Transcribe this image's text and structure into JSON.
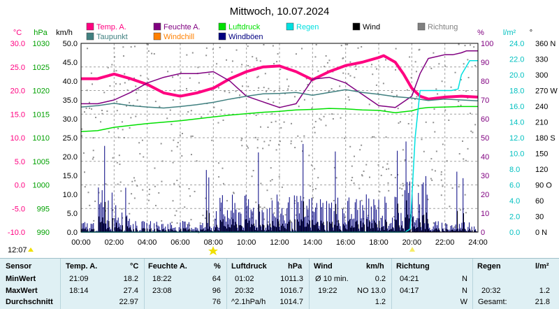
{
  "chart_data": {
    "type": "line",
    "title": "Mittwoch, 10.07.2024",
    "x_ticks": [
      "00:00",
      "02:00",
      "04:00",
      "06:00",
      "08:00",
      "10:00",
      "12:00",
      "14:00",
      "16:00",
      "18:00",
      "20:00",
      "22:00",
      "24:00"
    ],
    "left_axes": [
      {
        "name": "temp",
        "unit": "°C",
        "color": "#ff0080",
        "ticks": [
          "30.0",
          "25.0",
          "20.0",
          "15.0",
          "10.0",
          "5.0",
          "0.0",
          "-5.0",
          "-10.0"
        ]
      },
      {
        "name": "pressure",
        "unit": "hPa",
        "color": "#00a000",
        "ticks": [
          "1030",
          "1025",
          "1020",
          "1015",
          "1010",
          "1005",
          "1000",
          "995",
          "990"
        ]
      },
      {
        "name": "wind",
        "unit": "km/h",
        "color": "#000000",
        "ticks": [
          "50.0",
          "45.0",
          "40.0",
          "35.0",
          "30.0",
          "25.0",
          "20.0",
          "15.0",
          "10.0",
          "5.0",
          "0.0"
        ]
      }
    ],
    "right_axes": [
      {
        "name": "humidity",
        "unit": "%",
        "color": "#800080",
        "ticks": [
          "100",
          "90",
          "80",
          "70",
          "60",
          "50",
          "40",
          "30",
          "20",
          "10",
          "0"
        ]
      },
      {
        "name": "rain",
        "unit": "l/m²",
        "color": "#00c0c0",
        "ticks": [
          "24.0",
          "22.0",
          "20.0",
          "18.0",
          "16.0",
          "14.0",
          "12.0",
          "10.0",
          "8.0",
          "6.0",
          "4.0",
          "2.0",
          "0.0"
        ]
      },
      {
        "name": "direction",
        "unit": "°",
        "color": "#000000",
        "ticks": [
          "360 N",
          "330",
          "300",
          "270 W",
          "240",
          "210",
          "180 S",
          "150",
          "120",
          "90 O",
          "60",
          "30",
          "0 N"
        ]
      }
    ],
    "legend": [
      {
        "label": "Temp. A.",
        "color": "#ff0080"
      },
      {
        "label": "Feuchte A.",
        "color": "#800080"
      },
      {
        "label": "Luftdruck",
        "color": "#00e000"
      },
      {
        "label": "Regen",
        "color": "#00e0e0"
      },
      {
        "label": "Wind",
        "color": "#000000"
      },
      {
        "label": "Richtung",
        "color": "#808080"
      },
      {
        "label": "Taupunkt",
        "color": "#408080"
      },
      {
        "label": "Windchill",
        "color": "#ff8000"
      },
      {
        "label": "Windböen",
        "color": "#000080"
      }
    ],
    "series": [
      {
        "name": "Temp. A.",
        "axis": "temp",
        "x": [
          0,
          1,
          2,
          3,
          4,
          5,
          6,
          7,
          8,
          9,
          10,
          11,
          12,
          13,
          14,
          15,
          16,
          17,
          18,
          18.3,
          19,
          19.5,
          20,
          20.5,
          21,
          22,
          23,
          24
        ],
        "y": [
          22.5,
          22.5,
          23.5,
          22.5,
          21.3,
          19.5,
          18.8,
          19.5,
          20.5,
          22.5,
          24.0,
          25.0,
          25.2,
          24.0,
          22.3,
          24.0,
          25.3,
          26.0,
          27.0,
          27.4,
          26.0,
          23.5,
          20.5,
          18.8,
          18.2,
          18.6,
          18.8,
          18.6
        ]
      },
      {
        "name": "Feuchte A.",
        "axis": "humidity",
        "x": [
          0,
          1,
          2,
          3,
          4,
          5,
          6,
          7,
          8,
          9,
          10,
          11,
          12,
          13,
          14,
          15,
          16,
          17,
          18,
          19,
          20,
          20.5,
          21,
          22,
          22.5,
          23,
          23.3,
          24
        ],
        "y": [
          68,
          68,
          70,
          74,
          79,
          82,
          84,
          84,
          85,
          80,
          72,
          69,
          66,
          68,
          81,
          82,
          79,
          73,
          67,
          66,
          72,
          84,
          92,
          94,
          94,
          95,
          96,
          96
        ]
      },
      {
        "name": "Taupunkt",
        "axis": "temp",
        "x": [
          0,
          1,
          2,
          3,
          4,
          5,
          6,
          7,
          8,
          9,
          10,
          11,
          12,
          13,
          14,
          15,
          16,
          17,
          18,
          19,
          20,
          21,
          22,
          23,
          24
        ],
        "y": [
          16.5,
          16.8,
          17.3,
          16.8,
          16.5,
          16.3,
          16.6,
          17.0,
          17.5,
          18.2,
          18.8,
          19.3,
          19.4,
          19.6,
          19.0,
          19.6,
          20.2,
          19.6,
          19.2,
          18.7,
          18.4,
          17.9,
          18.2,
          18.0,
          17.8
        ]
      },
      {
        "name": "Luftdruck",
        "axis": "pressure",
        "x": [
          0,
          1,
          2,
          3,
          4,
          5,
          6,
          7,
          8,
          9,
          10,
          11,
          12,
          13,
          14,
          15,
          16,
          17,
          18,
          19,
          20,
          20.5,
          21,
          22,
          23,
          24
        ],
        "y": [
          1011.3,
          1011.5,
          1012.2,
          1012.6,
          1013.0,
          1013.3,
          1013.6,
          1014.0,
          1014.4,
          1014.8,
          1015.1,
          1015.4,
          1015.6,
          1015.9,
          1016.0,
          1016.2,
          1016.1,
          1015.9,
          1015.8,
          1015.3,
          1015.7,
          1016.2,
          1016.4,
          1016.5,
          1016.6,
          1016.6
        ]
      },
      {
        "name": "Regen",
        "axis": "rain",
        "x": [
          0,
          19.6,
          19.9,
          20.2,
          20.5,
          21.5,
          22.0,
          22.4,
          22.8,
          23.0,
          23.5,
          24
        ],
        "y": [
          0,
          0,
          0.4,
          12.0,
          18.0,
          18.0,
          18.0,
          18.0,
          18.2,
          20.0,
          21.8,
          21.8
        ]
      }
    ],
    "clock_markers": [
      "12:07"
    ]
  },
  "colors": {
    "background": "#ffffff",
    "grid": "#a0a0a0",
    "stats_bg": "#dff0f4",
    "temp": "#ff0080",
    "humidity": "#800080",
    "pressure": "#00e000",
    "rain": "#00e0e0",
    "dewpoint": "#408080",
    "gusts": "#000080",
    "wind": "#000000",
    "direction": "#808080"
  },
  "stats": {
    "headers": {
      "sensor": "Sensor",
      "temp": "Temp. A.",
      "temp_unit": "°C",
      "hum": "Feuchte A.",
      "hum_unit": "%",
      "pres": "Luftdruck",
      "pres_unit": "hPa",
      "wind": "Wind",
      "wind_unit": "km/h",
      "dir": "Richtung",
      "rain": "Regen",
      "rain_unit": "l/m²"
    },
    "rows": [
      {
        "label": "MinWert",
        "temp_time": "21:09",
        "temp_val": "18.2",
        "hum_time": "18:22",
        "hum_val": "64",
        "pres_time": "01:02",
        "pres_val": "1011.3",
        "wind_time": "Ø 10 min.",
        "wind_val": "0.2",
        "dir_time": "04:21",
        "dir_val": "N",
        "rain_time": "",
        "rain_val": ""
      },
      {
        "label": "MaxWert",
        "temp_time": "18:14",
        "temp_val": "27.4",
        "hum_time": "23:08",
        "hum_val": "96",
        "pres_time": "20:32",
        "pres_val": "1016.7",
        "wind_time": "19:22",
        "wind_val": "NO 13.0",
        "dir_time": "04:17",
        "dir_val": "N",
        "rain_time": "20:32",
        "rain_val": "1.2"
      },
      {
        "label": "Durchschnitt",
        "temp_time": "",
        "temp_val": "22.97",
        "hum_time": "",
        "hum_val": "76",
        "pres_time": "^2.1hPa/h",
        "pres_val": "1014.7",
        "wind_time": "",
        "wind_val": "1.2",
        "dir_time": "",
        "dir_val": "W",
        "rain_time": "Gesamt:",
        "rain_val": "21.8"
      }
    ]
  }
}
